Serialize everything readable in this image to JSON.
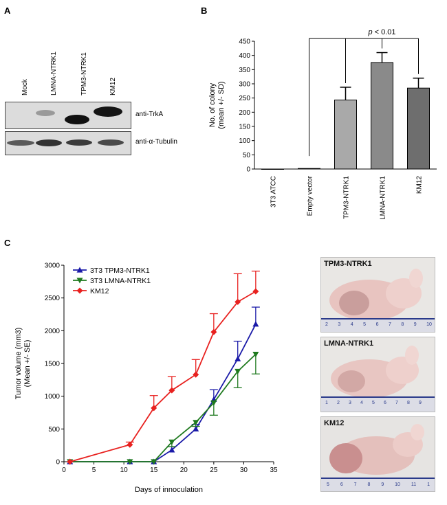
{
  "panels": {
    "a": {
      "letter": "A",
      "lanes": [
        "Mock",
        "LMNA-NTRK1",
        "TPM3-NTRK1",
        "KM12"
      ],
      "blots": [
        {
          "label": "anti-TrkA"
        },
        {
          "label": "anti-α-Tubulin"
        }
      ]
    },
    "b": {
      "letter": "B",
      "significance": "p < 0.01"
    },
    "c": {
      "letter": "C",
      "photos": [
        {
          "label": "TPM3-NTRK1",
          "ruler": [
            "2",
            "3",
            "4",
            "5",
            "6",
            "7",
            "8",
            "9",
            "10"
          ]
        },
        {
          "label": "LMNA-NTRK1",
          "ruler": [
            "1",
            "2",
            "3",
            "4",
            "5",
            "6",
            "7",
            "8",
            "9"
          ]
        },
        {
          "label": "KM12",
          "ruler": [
            "5",
            "6",
            "7",
            "8",
            "9",
            "10",
            "11",
            "1"
          ]
        }
      ]
    }
  },
  "chart_data": [
    {
      "type": "bar",
      "ylabel": "No. of colony (mean +/- SD)",
      "ylim": [
        0,
        450
      ],
      "yticks": [
        0,
        50,
        100,
        150,
        200,
        250,
        300,
        350,
        400,
        450
      ],
      "categories": [
        "3T3 ATCC",
        "Empty vector",
        "TPM3-NTRK1",
        "LMNA-NTRK1",
        "KM12"
      ],
      "values": [
        0,
        2,
        243,
        375,
        285
      ],
      "errors": [
        0,
        0,
        45,
        35,
        35
      ],
      "colors": [
        "#bdbdbd",
        "#bdbdbd",
        "#a9a9a9",
        "#8a8a8a",
        "#6e6e6e"
      ],
      "annotation": "p < 0.01"
    },
    {
      "type": "line",
      "xlabel": "Days of innoculation",
      "ylabel": "Tumor volume (mm3) (Mean +/- SE)",
      "xlim": [
        0,
        35
      ],
      "ylim": [
        0,
        3000
      ],
      "xticks": [
        0,
        5,
        10,
        15,
        20,
        25,
        30,
        35
      ],
      "yticks": [
        0,
        500,
        1000,
        1500,
        2000,
        2500,
        3000
      ],
      "legend": "top-left",
      "series": [
        {
          "name": "3T3 TPM3-NTRK1",
          "color": "#1a1aa8",
          "marker": "triangle-up",
          "x": [
            1,
            11,
            15,
            18,
            22,
            25,
            29,
            32
          ],
          "y": [
            0,
            0,
            0,
            180,
            500,
            950,
            1570,
            2100
          ],
          "err": [
            0,
            0,
            0,
            50,
            70,
            150,
            270,
            260
          ]
        },
        {
          "name": "3T3 LMNA-NTRK1",
          "color": "#1f7a1f",
          "marker": "triangle-down",
          "x": [
            1,
            11,
            15,
            18,
            22,
            25,
            29,
            32
          ],
          "y": [
            0,
            0,
            0,
            300,
            600,
            900,
            1380,
            1640
          ],
          "err": [
            0,
            0,
            0,
            70,
            60,
            190,
            250,
            300
          ]
        },
        {
          "name": "KM12",
          "color": "#e8211f",
          "marker": "diamond",
          "x": [
            1,
            11,
            15,
            18,
            22,
            25,
            29,
            32
          ],
          "y": [
            0,
            260,
            820,
            1090,
            1330,
            1980,
            2440,
            2600
          ],
          "err": [
            0,
            40,
            190,
            210,
            230,
            280,
            430,
            310
          ]
        }
      ]
    }
  ]
}
